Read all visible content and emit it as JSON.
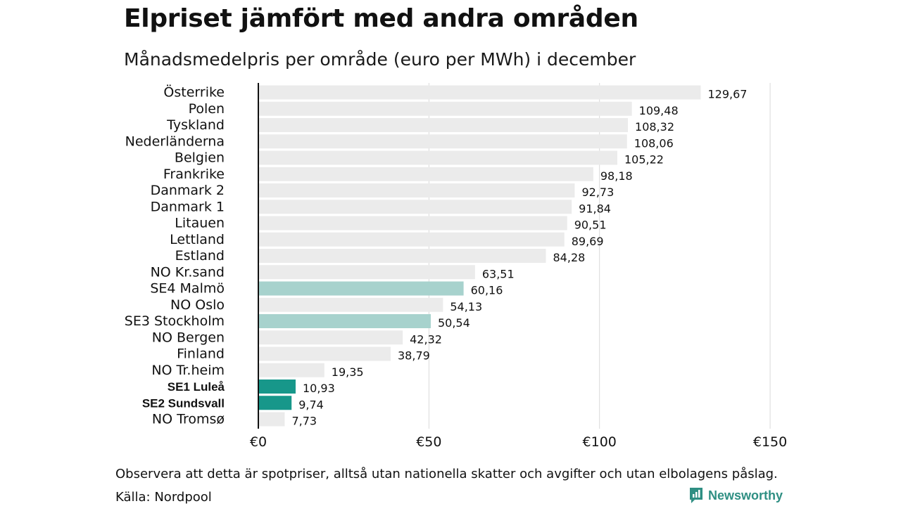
{
  "header": {
    "title": "Elpriset jämfört med andra områden",
    "subtitle": "Månadsmedelpris per område (euro per MWh) i december"
  },
  "footer": {
    "note": "Observera att detta är spotpriser, alltså utan nationella skatter och avgifter och utan elbolagens påslag.",
    "source": "Källa: Nordpool",
    "brand": "Newsworthy"
  },
  "colors": {
    "default_bar": "#ebebeb",
    "highlight_bar": "#a7d2cd",
    "strong_bar": "#17978a",
    "gridline": "#d9d9d9",
    "axis": "#111111",
    "brand": "#2f8f83"
  },
  "chart_data": {
    "type": "bar",
    "orientation": "horizontal",
    "title": "Elpriset jämfört med andra områden",
    "subtitle": "Månadsmedelpris per område (euro per MWh) i december",
    "categories": [
      "Österrike",
      "Polen",
      "Tyskland",
      "Nederländerna",
      "Belgien",
      "Frankrike",
      "Danmark  2",
      "Danmark  1",
      "Litauen",
      "Lettland",
      "Estland",
      "NO Kr.sand",
      "SE4  Malmö",
      "NO Oslo",
      "SE3  Stockholm",
      "NO Bergen",
      "Finland",
      "NO Tr.heim",
      "SE1 Luleå",
      "SE2 Sundsvall",
      "NO Tromsø"
    ],
    "values": [
      129.67,
      109.48,
      108.32,
      108.06,
      105.22,
      98.18,
      92.73,
      91.84,
      90.51,
      89.69,
      84.28,
      63.51,
      60.16,
      54.13,
      50.54,
      42.32,
      38.79,
      19.35,
      10.93,
      9.74,
      7.73
    ],
    "value_labels": [
      "129,67",
      "109,48",
      "108,32",
      "108,06",
      "105,22",
      "98,18",
      "92,73",
      "91,84",
      "90,51",
      "89,69",
      "84,28",
      "63,51",
      "60,16",
      "54,13",
      "50,54",
      "42,32",
      "38,79",
      "19,35",
      "10,93",
      "9,74",
      "7,73"
    ],
    "highlight": [
      "default",
      "default",
      "default",
      "default",
      "default",
      "default",
      "default",
      "default",
      "default",
      "default",
      "default",
      "default",
      "light",
      "default",
      "light",
      "default",
      "default",
      "default",
      "strong",
      "strong",
      "default"
    ],
    "xlim": [
      0,
      150
    ],
    "xticks": [
      0,
      50,
      100,
      150
    ],
    "xtick_labels": [
      "€0",
      "€50",
      "€100",
      "€150"
    ],
    "grid": true,
    "legend": "none"
  }
}
